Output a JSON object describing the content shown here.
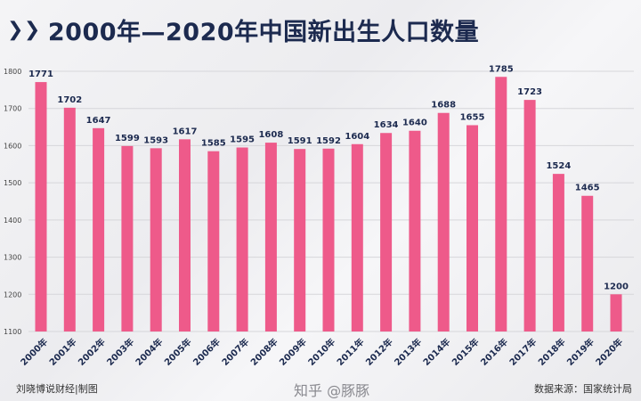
{
  "title": "2000年—2020年中国新出生人口数量",
  "title_icon": "double-chevron-right-icon",
  "footer_left": "刘晓博说财经|制图",
  "footer_right": "数据来源：国家统计局",
  "watermark": "刘晓博说财经",
  "site_watermark": "知乎 @豚豚",
  "colors": {
    "bar": "#ee5a8a",
    "bar_light": "#f7a9c3",
    "title": "#1c2a4f"
  },
  "chart_data": {
    "type": "bar",
    "title": "2000年—2020年中国新出生人口数量",
    "categories": [
      "2000年",
      "2001年",
      "2002年",
      "2003年",
      "2004年",
      "2005年",
      "2006年",
      "2007年",
      "2008年",
      "2009年",
      "2010年",
      "2011年",
      "2012年",
      "2013年",
      "2014年",
      "2015年",
      "2016年",
      "2017年",
      "2018年",
      "2019年",
      "2020年"
    ],
    "values": [
      1771,
      1702,
      1647,
      1599,
      1593,
      1617,
      1585,
      1595,
      1608,
      1591,
      1592,
      1604,
      1634,
      1640,
      1688,
      1655,
      1785,
      1723,
      1524,
      1465,
      1200
    ],
    "ylim": [
      1100,
      1800
    ],
    "yticks": [
      1100,
      1200,
      1300,
      1400,
      1500,
      1600,
      1700,
      1800
    ],
    "grid": true,
    "data_labels": true
  }
}
